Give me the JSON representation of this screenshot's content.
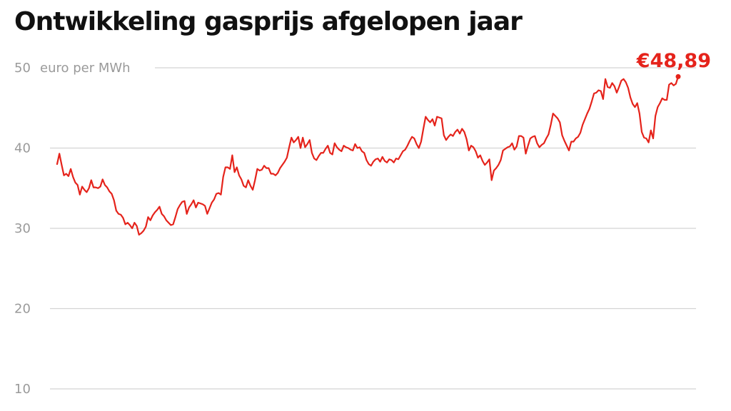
{
  "title": "Ontwikkeling gasprijs afgelopen jaar",
  "chart_data": {
    "type": "line",
    "title": "Ontwikkeling gasprijs afgelopen jaar",
    "ylabel": "euro per MWh",
    "xlabel": "",
    "ylim": [
      10,
      50
    ],
    "yticks": [
      {
        "value": 50,
        "label": "50"
      },
      {
        "value": 40,
        "label": "40"
      },
      {
        "value": 30,
        "label": "30"
      },
      {
        "value": 20,
        "label": "20"
      },
      {
        "value": 10,
        "label": "10"
      }
    ],
    "grid": true,
    "last_value_label": "€48,89",
    "line_color": "#e5231b",
    "series": [
      {
        "values": [
          38.0,
          39.3,
          37.9,
          36.6,
          36.8,
          36.5,
          37.4,
          36.4,
          35.7,
          35.4,
          34.2,
          35.2,
          34.8,
          34.5,
          35.0,
          36.0,
          35.1,
          35.1,
          35.0,
          35.2,
          36.1,
          35.4,
          35.1,
          34.6,
          34.3,
          33.5,
          32.2,
          31.8,
          31.7,
          31.3,
          30.5,
          30.7,
          30.4,
          30.0,
          30.7,
          30.3,
          29.2,
          29.4,
          29.7,
          30.2,
          31.4,
          31.0,
          31.6,
          32.0,
          32.3,
          32.7,
          31.8,
          31.5,
          31.0,
          30.7,
          30.4,
          30.5,
          31.4,
          32.4,
          32.9,
          33.3,
          33.4,
          31.8,
          32.6,
          33.0,
          33.5,
          32.6,
          33.2,
          33.1,
          33.0,
          32.8,
          31.8,
          32.5,
          33.2,
          33.6,
          34.3,
          34.4,
          34.2,
          36.4,
          37.6,
          37.6,
          37.4,
          39.1,
          37.0,
          37.6,
          36.6,
          36.1,
          35.3,
          35.1,
          36.0,
          35.3,
          34.8,
          36.0,
          37.4,
          37.2,
          37.3,
          37.8,
          37.5,
          37.5,
          36.8,
          36.8,
          36.6,
          36.9,
          37.5,
          37.9,
          38.3,
          38.8,
          40.1,
          41.3,
          40.7,
          41.0,
          41.4,
          40.0,
          41.3,
          40.1,
          40.5,
          41.0,
          39.4,
          38.7,
          38.5,
          39.0,
          39.4,
          39.4,
          39.9,
          40.3,
          39.4,
          39.2,
          40.6,
          40.1,
          39.8,
          39.6,
          40.3,
          40.1,
          40.0,
          39.8,
          39.7,
          40.5,
          40.0,
          40.1,
          39.6,
          39.4,
          38.5,
          38.0,
          37.8,
          38.3,
          38.6,
          38.7,
          38.3,
          38.9,
          38.4,
          38.2,
          38.6,
          38.5,
          38.2,
          38.7,
          38.6,
          39.1,
          39.6,
          39.8,
          40.3,
          40.9,
          41.4,
          41.2,
          40.5,
          40.0,
          40.8,
          42.4,
          43.9,
          43.5,
          43.2,
          43.6,
          42.8,
          43.9,
          43.8,
          43.7,
          41.6,
          41.0,
          41.4,
          41.7,
          41.5,
          42.0,
          42.3,
          41.8,
          42.4,
          42.0,
          41.1,
          39.7,
          40.3,
          40.1,
          39.6,
          38.8,
          39.1,
          38.4,
          37.9,
          38.2,
          38.6,
          36.0,
          37.2,
          37.5,
          37.9,
          38.5,
          39.7,
          39.9,
          40.1,
          40.2,
          40.6,
          39.8,
          40.2,
          41.5,
          41.5,
          41.3,
          39.3,
          40.3,
          41.2,
          41.4,
          41.5,
          40.6,
          40.1,
          40.4,
          40.6,
          41.2,
          41.7,
          42.9,
          44.3,
          44.0,
          43.7,
          43.2,
          41.6,
          40.9,
          40.3,
          39.7,
          40.8,
          40.8,
          41.2,
          41.4,
          41.9,
          42.9,
          43.6,
          44.3,
          44.9,
          45.8,
          46.8,
          46.9,
          47.2,
          47.1,
          46.1,
          48.6,
          47.6,
          47.5,
          48.1,
          47.7,
          46.9,
          47.6,
          48.4,
          48.6,
          48.2,
          47.5,
          46.3,
          45.5,
          45.1,
          45.6,
          44.3,
          42.0,
          41.3,
          41.2,
          40.7,
          42.2,
          41.2,
          44.0,
          45.1,
          45.6,
          46.2,
          46.0,
          46.0,
          47.9,
          48.1,
          47.8,
          48.0,
          48.9
        ]
      }
    ]
  }
}
